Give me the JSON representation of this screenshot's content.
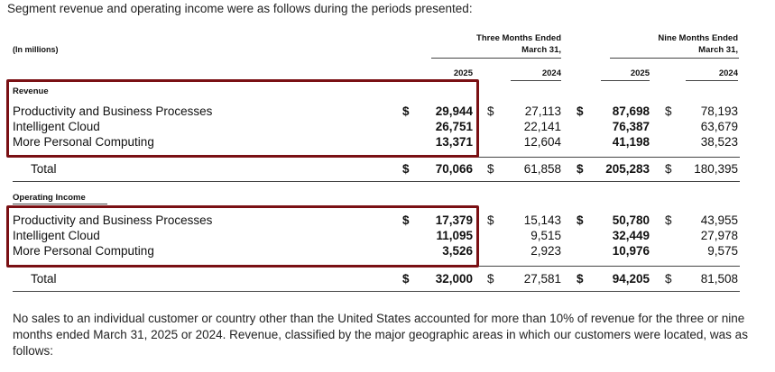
{
  "intro": "Segment revenue and operating income were as follows during the periods presented:",
  "units": "(In millions)",
  "headers": {
    "three_months_l1": "Three Months Ended",
    "three_months_l2": "March 31,",
    "nine_months_l1": "Nine Months Ended",
    "nine_months_l2": "March 31,",
    "years": [
      "2025",
      "2024",
      "2025",
      "2024"
    ]
  },
  "currency": "$",
  "revenue": {
    "title": "Revenue",
    "rows": [
      {
        "label": "Productivity and Business Processes",
        "values": [
          "29,944",
          "27,113",
          "87,698",
          "78,193"
        ]
      },
      {
        "label": "Intelligent Cloud",
        "values": [
          "26,751",
          "22,141",
          "76,387",
          "63,679"
        ]
      },
      {
        "label": "More Personal Computing",
        "values": [
          "13,371",
          "12,604",
          "41,198",
          "38,523"
        ]
      }
    ],
    "total": {
      "label": "Total",
      "values": [
        "70,066",
        "61,858",
        "205,283",
        "180,395"
      ]
    }
  },
  "operating_income": {
    "title": "Operating Income",
    "rows": [
      {
        "label": "Productivity and Business Processes",
        "values": [
          "17,379",
          "15,143",
          "50,780",
          "43,955"
        ]
      },
      {
        "label": "Intelligent Cloud",
        "values": [
          "11,095",
          "9,515",
          "32,449",
          "27,978"
        ]
      },
      {
        "label": "More Personal Computing",
        "values": [
          "3,526",
          "2,923",
          "10,976",
          "9,575"
        ]
      }
    ],
    "total": {
      "label": "Total",
      "values": [
        "32,000",
        "27,581",
        "94,205",
        "81,508"
      ]
    }
  },
  "note": "No sales to an individual customer or country other than the United States accounted for more than 10% of revenue for the three or nine months ended March 31, 2025 or 2024. Revenue, classified by the major geographic areas in which our customers were located, was as follows:",
  "colors": {
    "highlight_box": "#7a1014"
  }
}
